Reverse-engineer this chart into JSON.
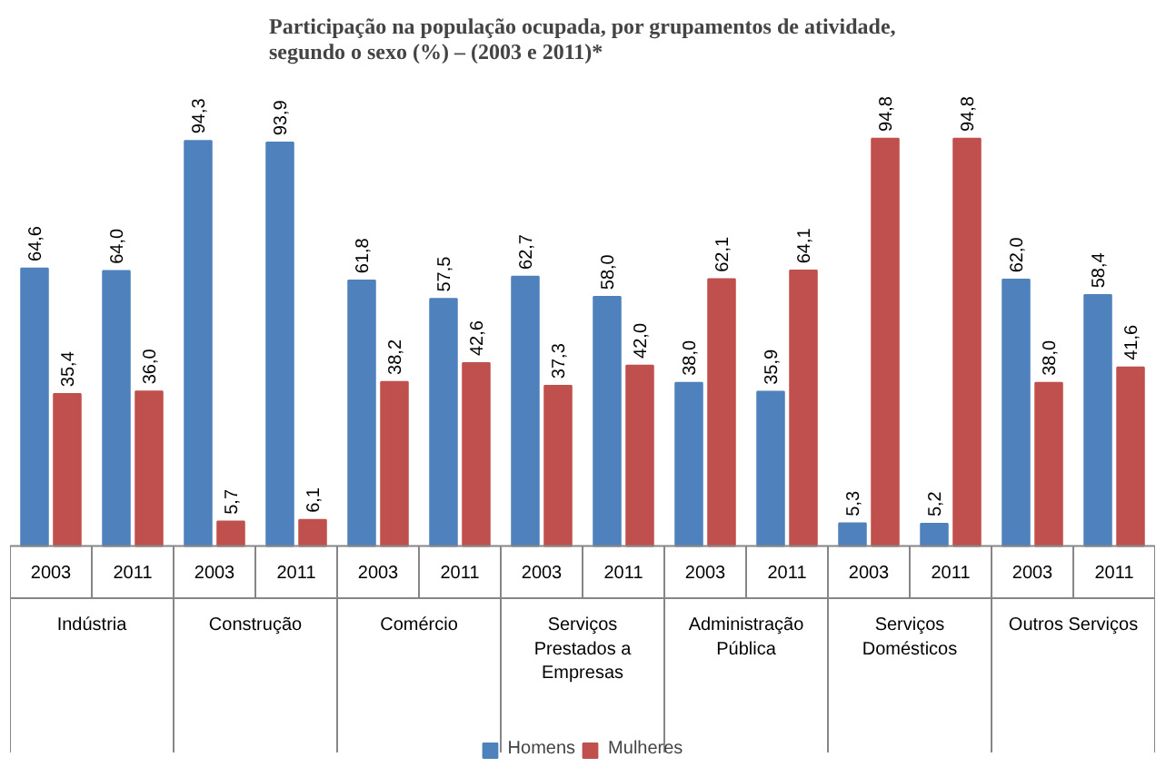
{
  "chart_data": {
    "type": "bar",
    "title": "Participação na população ocupada, por grupamentos de atividade,\nsegundo o sexo (%) – (2003 e 2011)*",
    "categories": [
      "2003",
      "2011",
      "2003",
      "2011",
      "2003",
      "2011",
      "2003",
      "2011",
      "2003",
      "2011",
      "2003",
      "2011",
      "2003",
      "2011"
    ],
    "annotations": [
      "Indústria",
      "Construção",
      "Comércio",
      "Serviços\nPrestados a\nEmpresas",
      "Administração\nPública",
      "Serviços\nDomésticos",
      "Outros Serviços"
    ],
    "series": [
      {
        "name": "Homens",
        "color": "#4f81bd",
        "values": [
          64.6,
          64.0,
          94.3,
          93.9,
          61.8,
          57.5,
          62.7,
          58.0,
          38.0,
          35.9,
          5.3,
          5.2,
          62.0,
          58.4
        ],
        "value_labels": [
          "64,6",
          "64,0",
          "94,3",
          "93,9",
          "61,8",
          "57,5",
          "62,7",
          "58,0",
          "38,0",
          "35,9",
          "5,3",
          "5,2",
          "62,0",
          "58,4"
        ]
      },
      {
        "name": "Mulheres",
        "color": "#c0504d",
        "values": [
          35.4,
          36.0,
          5.7,
          6.1,
          38.2,
          42.6,
          37.3,
          42.0,
          62.1,
          64.1,
          94.8,
          94.8,
          38.0,
          41.6
        ],
        "value_labels": [
          "35,4",
          "36,0",
          "5,7",
          "6,1",
          "38,2",
          "42,6",
          "37,3",
          "42,0",
          "62,1",
          "64,1",
          "94,8",
          "94,8",
          "38,0",
          "41,6"
        ]
      }
    ],
    "legend": "bottom"
  }
}
